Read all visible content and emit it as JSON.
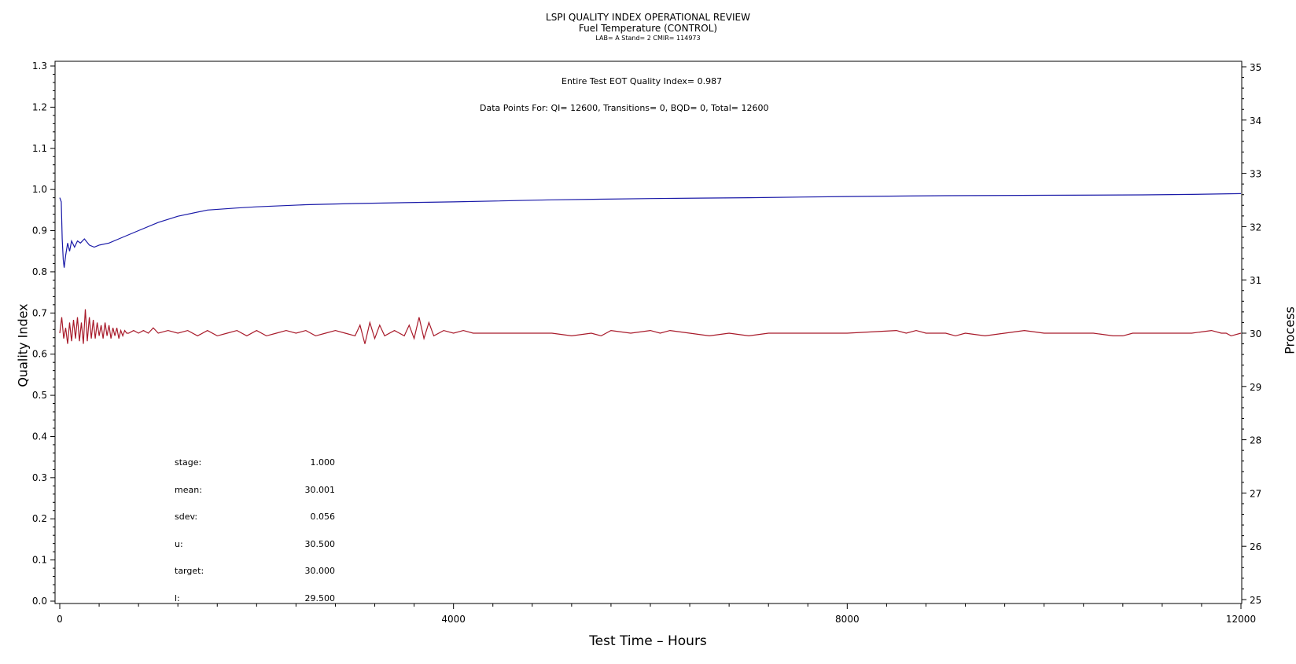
{
  "chart_data": {
    "type": "line",
    "title": "LSPI QUALITY INDEX OPERATIONAL REVIEW",
    "subtitle": "Fuel Temperature (CONTROL)",
    "subtitle2": "LAB= A Stand= 2 CMIR= 114973",
    "xlabel": "Test Time – Hours",
    "ylabel": "Quality Index",
    "y2label": "Process",
    "xlim": [
      0,
      12000
    ],
    "ylim": [
      0,
      1.3
    ],
    "y2lim": [
      25,
      35
    ],
    "x_ticks": [
      0,
      4000,
      8000,
      12000
    ],
    "y_ticks": [
      "0.0",
      "0.1",
      "0.2",
      "0.3",
      "0.4",
      "0.5",
      "0.6",
      "0.7",
      "0.8",
      "0.9",
      "1.0",
      "1.1",
      "1.2",
      "1.3"
    ],
    "y2_ticks": [
      "25",
      "26",
      "27",
      "28",
      "29",
      "30",
      "31",
      "32",
      "33",
      "34",
      "35"
    ],
    "annotations": {
      "eot": "Entire Test EOT Quality Index=   0.987",
      "points": "Data Points For: QI= 12600, Transitions=      0, BQD=      0, Total= 12600"
    },
    "stats": [
      {
        "label": "stage:",
        "value": "1.000"
      },
      {
        "label": "mean:",
        "value": "30.001"
      },
      {
        "label": "sdev:",
        "value": "0.056"
      },
      {
        "label": "u:",
        "value": "30.500"
      },
      {
        "label": "target:",
        "value": "30.000"
      },
      {
        "label": "l:",
        "value": "29.500"
      }
    ],
    "series": [
      {
        "axis": "left",
        "color": "#1a1aa8",
        "x": [
          0,
          15,
          25,
          35,
          45,
          60,
          80,
          100,
          120,
          150,
          180,
          210,
          250,
          300,
          350,
          400,
          500,
          600,
          800,
          1000,
          1200,
          1500,
          1800,
          2000,
          2500,
          3000,
          3500,
          4000,
          5000,
          6000,
          7000,
          8000,
          9000,
          10000,
          11000,
          11500,
          12000
        ],
        "values": [
          0.98,
          0.97,
          0.88,
          0.83,
          0.81,
          0.84,
          0.87,
          0.85,
          0.875,
          0.86,
          0.875,
          0.87,
          0.88,
          0.865,
          0.86,
          0.865,
          0.87,
          0.88,
          0.9,
          0.92,
          0.935,
          0.95,
          0.955,
          0.958,
          0.963,
          0.966,
          0.968,
          0.97,
          0.975,
          0.978,
          0.98,
          0.983,
          0.985,
          0.986,
          0.987,
          0.988,
          0.99
        ]
      },
      {
        "axis": "right",
        "color": "#a81a2a",
        "x": [
          0,
          20,
          40,
          60,
          80,
          100,
          120,
          140,
          160,
          180,
          200,
          220,
          240,
          260,
          280,
          300,
          320,
          340,
          360,
          380,
          400,
          420,
          440,
          460,
          480,
          500,
          520,
          540,
          560,
          580,
          600,
          620,
          640,
          660,
          680,
          700,
          750,
          800,
          850,
          900,
          950,
          1000,
          1100,
          1200,
          1300,
          1400,
          1500,
          1600,
          1700,
          1800,
          1900,
          2000,
          2100,
          2200,
          2300,
          2400,
          2500,
          2600,
          2700,
          2800,
          2900,
          3000,
          3050,
          3100,
          3150,
          3200,
          3250,
          3300,
          3400,
          3500,
          3550,
          3600,
          3650,
          3700,
          3750,
          3800,
          3900,
          4000,
          4100,
          4200,
          4500,
          5000,
          5200,
          5400,
          5500,
          5600,
          5800,
          6000,
          6100,
          6200,
          6400,
          6600,
          6800,
          7000,
          7200,
          7500,
          8000,
          8500,
          8600,
          8700,
          8800,
          9000,
          9100,
          9200,
          9400,
          9600,
          9800,
          10000,
          10500,
          10700,
          10800,
          10900,
          11000,
          11200,
          11500,
          11700,
          11800,
          11850,
          11900,
          12000
        ],
        "values": [
          30.0,
          30.3,
          29.9,
          30.1,
          29.8,
          30.2,
          29.85,
          30.25,
          29.9,
          30.3,
          29.85,
          30.2,
          29.8,
          30.45,
          29.85,
          30.3,
          29.9,
          30.25,
          29.9,
          30.2,
          29.95,
          30.15,
          29.9,
          30.2,
          29.95,
          30.15,
          29.9,
          30.1,
          29.95,
          30.1,
          29.9,
          30.05,
          29.95,
          30.05,
          30.0,
          30.0,
          30.05,
          30.0,
          30.05,
          30.0,
          30.1,
          30.0,
          30.05,
          30.0,
          30.05,
          29.95,
          30.05,
          29.95,
          30.0,
          30.05,
          29.95,
          30.05,
          29.95,
          30.0,
          30.05,
          30.0,
          30.05,
          29.95,
          30.0,
          30.05,
          30.0,
          29.95,
          30.15,
          29.8,
          30.2,
          29.9,
          30.15,
          29.95,
          30.05,
          29.95,
          30.15,
          29.9,
          30.3,
          29.9,
          30.2,
          29.95,
          30.05,
          30.0,
          30.05,
          30.0,
          30.0,
          30.0,
          29.95,
          30.0,
          29.95,
          30.05,
          30.0,
          30.05,
          30.0,
          30.05,
          30.0,
          29.95,
          30.0,
          29.95,
          30.0,
          30.0,
          30.0,
          30.05,
          30.0,
          30.05,
          30.0,
          30.0,
          29.95,
          30.0,
          29.95,
          30.0,
          30.05,
          30.0,
          30.0,
          29.95,
          29.95,
          30.0,
          30.0,
          30.0,
          30.0,
          30.05,
          30.0,
          30.0,
          29.95,
          30.0
        ]
      }
    ]
  }
}
